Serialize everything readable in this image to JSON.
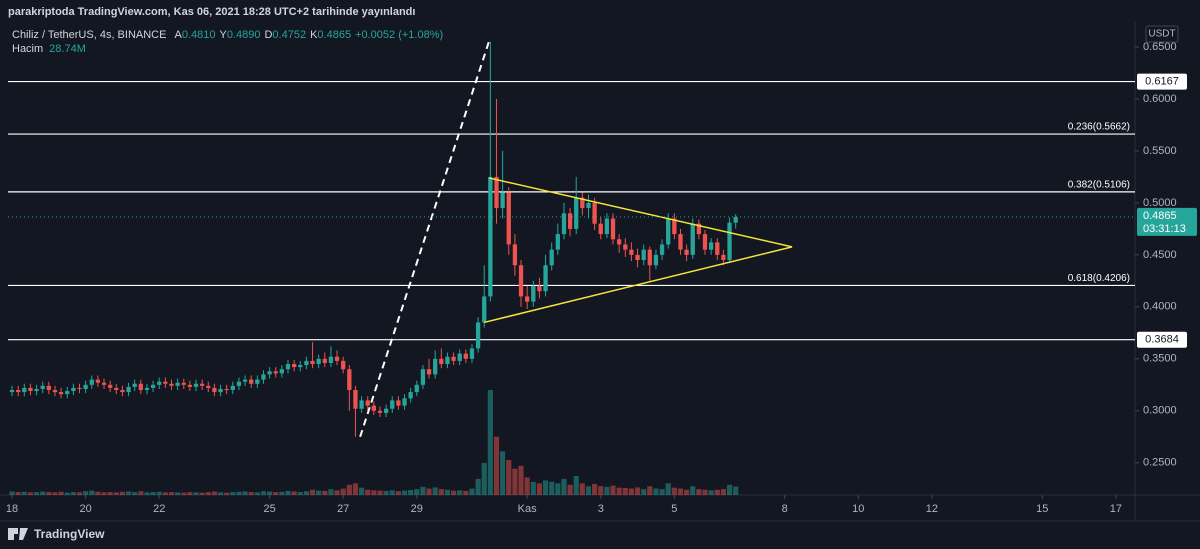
{
  "header": "parakriptoda TradingView.com, Kas 06, 2021 18:28 UTC+2 tarihinde yayınlandı",
  "footer": "TradingView",
  "chart_data": {
    "type": "candlestick",
    "legend": {
      "symbol": "Chiliz / TetherUS, 4s, BINANCE",
      "ohlc": [
        {
          "label": "A",
          "value": "0.4810"
        },
        {
          "label": "Y",
          "value": "0.4890"
        },
        {
          "label": "D",
          "value": "0.4752"
        },
        {
          "label": "K",
          "value": "0.4865"
        }
      ],
      "change": "+0.0052 (+1.08%)",
      "volume_name": "Hacim",
      "volume": "28.74M"
    },
    "currency": "USDT",
    "up_color": "#26a69a",
    "down_color": "#ef5350",
    "grid": false,
    "xlim": [
      -0.11,
      30.52
    ],
    "xticks": [
      {
        "value": 0,
        "label": "18"
      },
      {
        "value": 2,
        "label": "20"
      },
      {
        "value": 4,
        "label": "22"
      },
      {
        "value": 7,
        "label": "25"
      },
      {
        "value": 9,
        "label": "27"
      },
      {
        "value": 11,
        "label": "29"
      },
      {
        "value": 14,
        "label": "Kas"
      },
      {
        "value": 16,
        "label": "3"
      },
      {
        "value": 18,
        "label": "5"
      },
      {
        "value": 21,
        "label": "8"
      },
      {
        "value": 23,
        "label": "10"
      },
      {
        "value": 25,
        "label": "12"
      },
      {
        "value": 28,
        "label": "15"
      },
      {
        "value": 30,
        "label": "17"
      }
    ],
    "ylim": [
      0.219,
      0.674
    ],
    "yticks": [
      {
        "value": 0.25,
        "label": "0.2500"
      },
      {
        "value": 0.3,
        "label": "0.3000"
      },
      {
        "value": 0.35,
        "label": "0.3500"
      },
      {
        "value": 0.4,
        "label": "0.4000"
      },
      {
        "value": 0.45,
        "label": "0.4500"
      },
      {
        "value": 0.5,
        "label": "0.5000"
      },
      {
        "value": 0.55,
        "label": "0.5500"
      },
      {
        "value": 0.6,
        "label": "0.6000"
      },
      {
        "value": 0.65,
        "label": "0.6500"
      }
    ],
    "x": [
      0,
      0.167,
      0.333,
      0.5,
      0.667,
      0.833,
      1,
      1.167,
      1.333,
      1.5,
      1.667,
      1.833,
      2,
      2.167,
      2.333,
      2.5,
      2.667,
      2.833,
      3,
      3.167,
      3.333,
      3.5,
      3.667,
      3.833,
      4,
      4.167,
      4.333,
      4.5,
      4.667,
      4.833,
      5,
      5.167,
      5.333,
      5.5,
      5.667,
      5.833,
      6,
      6.167,
      6.333,
      6.5,
      6.667,
      6.833,
      7,
      7.167,
      7.333,
      7.5,
      7.667,
      7.833,
      8,
      8.167,
      8.333,
      8.5,
      8.667,
      8.833,
      9,
      9.167,
      9.333,
      9.5,
      9.667,
      9.833,
      10,
      10.167,
      10.333,
      10.5,
      10.667,
      10.833,
      11,
      11.167,
      11.333,
      11.5,
      11.667,
      11.833,
      12,
      12.167,
      12.333,
      12.5,
      12.667,
      12.833,
      13,
      13.167,
      13.333,
      13.5,
      13.667,
      13.833,
      14,
      14.167,
      14.333,
      14.5,
      14.667,
      14.833,
      15,
      15.167,
      15.333,
      15.5,
      15.667,
      15.833,
      16,
      16.167,
      16.333,
      16.5,
      16.667,
      16.833,
      17,
      17.167,
      17.333,
      17.5,
      17.667,
      17.833,
      18,
      18.167,
      18.333,
      18.5,
      18.667,
      18.833,
      19,
      19.167,
      19.333,
      19.5,
      19.667
    ],
    "open": [
      0.318,
      0.32,
      0.318,
      0.322,
      0.319,
      0.321,
      0.324,
      0.32,
      0.318,
      0.316,
      0.319,
      0.322,
      0.321,
      0.325,
      0.33,
      0.327,
      0.325,
      0.322,
      0.32,
      0.318,
      0.323,
      0.326,
      0.32,
      0.322,
      0.325,
      0.328,
      0.326,
      0.324,
      0.327,
      0.325,
      0.323,
      0.326,
      0.324,
      0.322,
      0.318,
      0.321,
      0.32,
      0.324,
      0.328,
      0.33,
      0.326,
      0.33,
      0.335,
      0.338,
      0.336,
      0.34,
      0.345,
      0.342,
      0.344,
      0.348,
      0.345,
      0.35,
      0.346,
      0.352,
      0.348,
      0.34,
      0.32,
      0.302,
      0.31,
      0.305,
      0.3,
      0.298,
      0.302,
      0.31,
      0.305,
      0.312,
      0.318,
      0.325,
      0.34,
      0.335,
      0.35,
      0.345,
      0.352,
      0.348,
      0.355,
      0.35,
      0.36,
      0.385,
      0.41,
      0.525,
      0.495,
      0.51,
      0.46,
      0.44,
      0.41,
      0.405,
      0.42,
      0.415,
      0.44,
      0.455,
      0.47,
      0.49,
      0.475,
      0.505,
      0.495,
      0.5,
      0.48,
      0.47,
      0.485,
      0.465,
      0.46,
      0.455,
      0.45,
      0.445,
      0.455,
      0.44,
      0.45,
      0.46,
      0.485,
      0.47,
      0.455,
      0.45,
      0.48,
      0.47,
      0.455,
      0.462,
      0.45,
      0.445,
      0.481
    ],
    "high": [
      0.324,
      0.324,
      0.326,
      0.326,
      0.325,
      0.328,
      0.328,
      0.324,
      0.322,
      0.323,
      0.326,
      0.326,
      0.329,
      0.334,
      0.334,
      0.331,
      0.329,
      0.326,
      0.324,
      0.327,
      0.33,
      0.33,
      0.326,
      0.329,
      0.332,
      0.332,
      0.33,
      0.331,
      0.331,
      0.329,
      0.33,
      0.33,
      0.328,
      0.326,
      0.325,
      0.325,
      0.328,
      0.332,
      0.334,
      0.334,
      0.334,
      0.339,
      0.342,
      0.342,
      0.344,
      0.349,
      0.349,
      0.348,
      0.352,
      0.366,
      0.354,
      0.356,
      0.362,
      0.358,
      0.352,
      0.344,
      0.324,
      0.314,
      0.314,
      0.309,
      0.304,
      0.306,
      0.314,
      0.314,
      0.316,
      0.322,
      0.329,
      0.344,
      0.35,
      0.358,
      0.36,
      0.356,
      0.356,
      0.359,
      0.359,
      0.364,
      0.39,
      0.44,
      0.655,
      0.6,
      0.55,
      0.515,
      0.47,
      0.445,
      0.42,
      0.425,
      0.428,
      0.45,
      0.462,
      0.48,
      0.5,
      0.495,
      0.525,
      0.51,
      0.508,
      0.505,
      0.486,
      0.49,
      0.49,
      0.47,
      0.466,
      0.462,
      0.456,
      0.46,
      0.458,
      0.455,
      0.465,
      0.49,
      0.49,
      0.475,
      0.46,
      0.485,
      0.484,
      0.474,
      0.466,
      0.466,
      0.455,
      0.486,
      0.489
    ],
    "low": [
      0.314,
      0.314,
      0.314,
      0.315,
      0.315,
      0.317,
      0.316,
      0.314,
      0.312,
      0.312,
      0.315,
      0.317,
      0.317,
      0.321,
      0.323,
      0.321,
      0.318,
      0.316,
      0.314,
      0.314,
      0.319,
      0.316,
      0.316,
      0.318,
      0.321,
      0.322,
      0.32,
      0.32,
      0.321,
      0.319,
      0.319,
      0.32,
      0.318,
      0.314,
      0.314,
      0.316,
      0.316,
      0.32,
      0.324,
      0.322,
      0.322,
      0.326,
      0.331,
      0.332,
      0.332,
      0.336,
      0.338,
      0.338,
      0.34,
      0.341,
      0.341,
      0.342,
      0.342,
      0.344,
      0.336,
      0.3,
      0.275,
      0.298,
      0.3,
      0.296,
      0.294,
      0.294,
      0.298,
      0.301,
      0.301,
      0.308,
      0.314,
      0.321,
      0.331,
      0.331,
      0.341,
      0.341,
      0.344,
      0.344,
      0.346,
      0.346,
      0.356,
      0.38,
      0.405,
      0.48,
      0.485,
      0.45,
      0.43,
      0.4,
      0.398,
      0.4,
      0.408,
      0.41,
      0.435,
      0.45,
      0.465,
      0.468,
      0.47,
      0.488,
      0.485,
      0.474,
      0.465,
      0.466,
      0.46,
      0.452,
      0.448,
      0.444,
      0.438,
      0.44,
      0.425,
      0.436,
      0.445,
      0.456,
      0.465,
      0.45,
      0.444,
      0.446,
      0.465,
      0.45,
      0.45,
      0.445,
      0.44,
      0.442,
      0.4752
    ],
    "close": [
      0.32,
      0.318,
      0.322,
      0.319,
      0.321,
      0.324,
      0.32,
      0.318,
      0.316,
      0.319,
      0.322,
      0.321,
      0.325,
      0.33,
      0.327,
      0.325,
      0.322,
      0.32,
      0.318,
      0.323,
      0.326,
      0.32,
      0.322,
      0.325,
      0.328,
      0.326,
      0.324,
      0.327,
      0.325,
      0.323,
      0.326,
      0.324,
      0.322,
      0.318,
      0.321,
      0.32,
      0.324,
      0.328,
      0.33,
      0.326,
      0.33,
      0.335,
      0.338,
      0.336,
      0.34,
      0.345,
      0.342,
      0.344,
      0.348,
      0.345,
      0.35,
      0.346,
      0.352,
      0.348,
      0.34,
      0.32,
      0.302,
      0.31,
      0.305,
      0.3,
      0.298,
      0.302,
      0.31,
      0.305,
      0.312,
      0.318,
      0.325,
      0.34,
      0.335,
      0.35,
      0.345,
      0.352,
      0.348,
      0.355,
      0.35,
      0.36,
      0.385,
      0.41,
      0.525,
      0.495,
      0.51,
      0.46,
      0.44,
      0.41,
      0.405,
      0.42,
      0.415,
      0.44,
      0.455,
      0.47,
      0.49,
      0.475,
      0.505,
      0.495,
      0.5,
      0.48,
      0.47,
      0.485,
      0.465,
      0.46,
      0.455,
      0.45,
      0.445,
      0.455,
      0.44,
      0.45,
      0.46,
      0.485,
      0.47,
      0.455,
      0.45,
      0.48,
      0.47,
      0.455,
      0.462,
      0.45,
      0.445,
      0.481,
      0.4865
    ],
    "volume": [
      12,
      10,
      11,
      9,
      10,
      12,
      10,
      9,
      11,
      8,
      10,
      9,
      13,
      15,
      11,
      9,
      10,
      9,
      11,
      12,
      10,
      13,
      9,
      10,
      11,
      9,
      10,
      9,
      8,
      10,
      9,
      8,
      10,
      12,
      9,
      8,
      10,
      11,
      12,
      10,
      9,
      13,
      12,
      10,
      11,
      14,
      12,
      10,
      13,
      18,
      15,
      14,
      20,
      16,
      22,
      35,
      40,
      25,
      18,
      16,
      15,
      14,
      16,
      13,
      15,
      17,
      20,
      28,
      22,
      26,
      20,
      18,
      15,
      16,
      14,
      22,
      55,
      110,
      360,
      200,
      150,
      120,
      90,
      100,
      60,
      45,
      40,
      50,
      45,
      40,
      55,
      35,
      65,
      40,
      30,
      38,
      30,
      28,
      32,
      25,
      24,
      22,
      26,
      20,
      30,
      22,
      20,
      40,
      25,
      22,
      18,
      30,
      20,
      18,
      16,
      18,
      20,
      35,
      28.74
    ],
    "last_price": {
      "value": 0.4865,
      "label": "0.4865",
      "countdown": "03:31:13"
    },
    "levels": [
      {
        "value": 0.6167,
        "label": "0.6167",
        "label_position": "axis"
      },
      {
        "value": 0.5662,
        "label": "0.236(0.5662)",
        "label_position": "line"
      },
      {
        "value": 0.5106,
        "label": "0.382(0.5106)",
        "label_position": "line"
      },
      {
        "value": 0.4206,
        "label": "0.618(0.4206)",
        "label_position": "line"
      },
      {
        "value": 0.3684,
        "label": "0.3684",
        "label_position": "axis"
      }
    ],
    "trendlines": [
      {
        "color": "#ffffff",
        "dashed": true,
        "x": [
          9.46,
          12.96
        ],
        "y": [
          0.275,
          0.655
        ]
      },
      {
        "color": "#f5e53b",
        "dashed": false,
        "x": [
          12.96,
          21.2
        ],
        "y": [
          0.524,
          0.4577
        ]
      },
      {
        "color": "#f5e53b",
        "dashed": false,
        "x": [
          12.83,
          21.2
        ],
        "y": [
          0.385,
          0.4577
        ]
      }
    ]
  }
}
